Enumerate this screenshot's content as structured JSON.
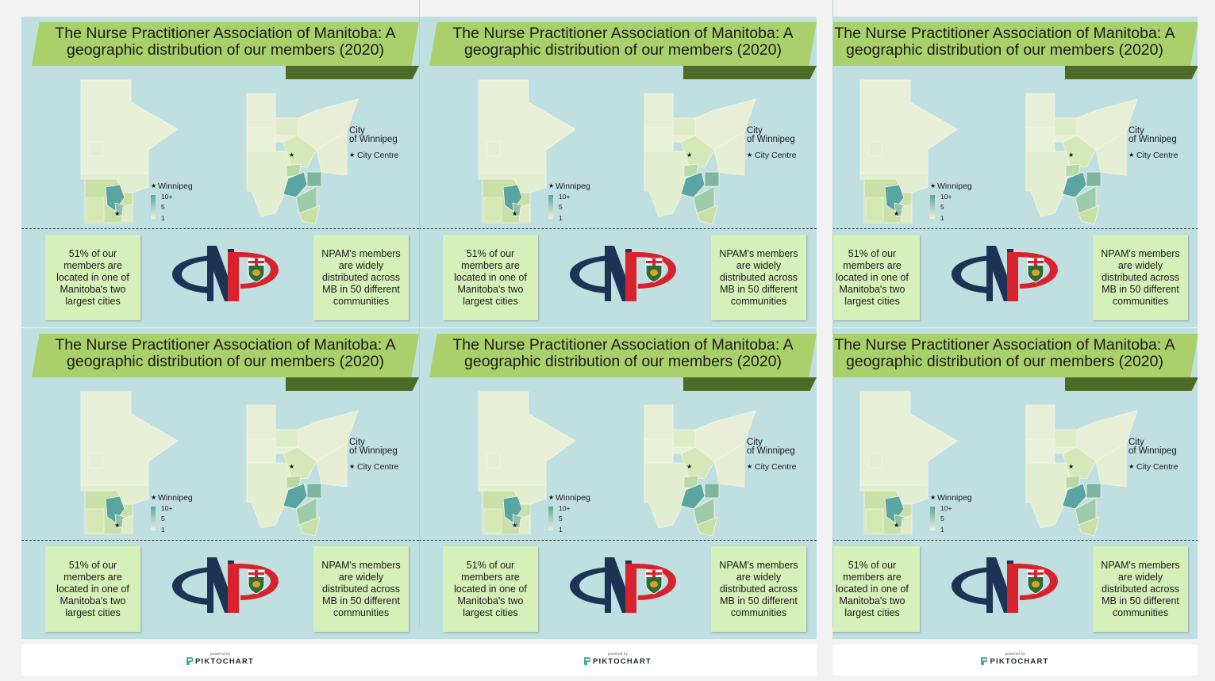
{
  "title_line1": "The Nurse Practitioner Association of Manitoba: A",
  "title_line2": "geographic distribution of our members (2020)",
  "map": {
    "province_marker_label": "Winnipeg",
    "city_title_line1": "City",
    "city_title_line2": "of Winnipeg",
    "city_marker_label": "City Centre",
    "legend": {
      "max": "10+",
      "mid": "5",
      "min": "1",
      "color_high": "#5aa5a1",
      "color_low": "#eef3dc"
    }
  },
  "notes": {
    "left": "51% of our members are located in one of Manitoba's two largest cities",
    "right": "NPAM's members are widely distributed across MB in 50 different communities"
  },
  "footer": {
    "powered_by": "powered by",
    "brand": "PIKTOCHART"
  },
  "colors": {
    "background": "#c0dfe1",
    "banner": "#a9d06a",
    "note": "#d6f0b9",
    "logo_navy": "#1d3356",
    "logo_red": "#d6232e"
  }
}
